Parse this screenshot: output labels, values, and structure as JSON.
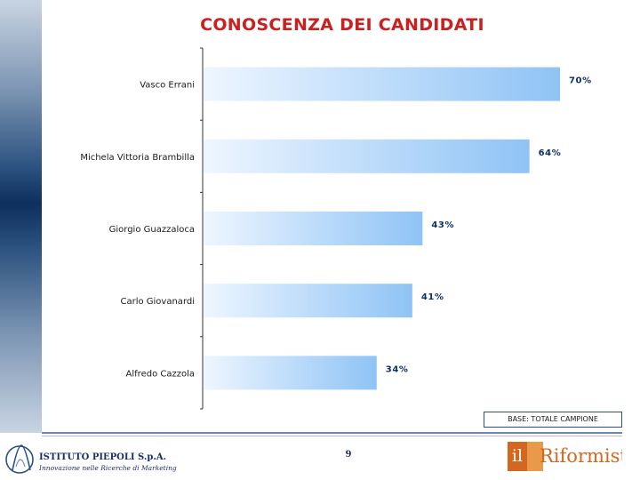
{
  "title": "CONOSCENZA DEI CANDIDATI",
  "base_note": "BASE: TOTALE CAMPIONE",
  "page_number": "9",
  "footer": {
    "piepoli_name": "ISTITUTO PIEPOLI S.p.A.",
    "piepoli_tagline": "Innovazione nelle Ricerche di Marketing",
    "riformista_il": "il",
    "riformista_word": "Riformista"
  },
  "colors": {
    "title": "#cc1f1f",
    "bar_start": "#eef6ff",
    "bar_end": "#8fc3f5",
    "value_label": "#0d2f6b",
    "side_band": "#0d2f5e"
  },
  "chart_data": {
    "type": "bar",
    "orientation": "horizontal",
    "title": "CONOSCENZA DEI CANDIDATI",
    "categories": [
      "Vasco Errani",
      "Michela Vittoria Brambilla",
      "Giorgio Guazzaloca",
      "Carlo Giovanardi",
      "Alfredo Cazzola"
    ],
    "values": [
      70,
      64,
      43,
      41,
      34
    ],
    "value_labels": [
      "70%",
      "64%",
      "43%",
      "41%",
      "34%"
    ],
    "unit": "%",
    "xlim": [
      0,
      100
    ],
    "grid": false,
    "legend": "none"
  }
}
